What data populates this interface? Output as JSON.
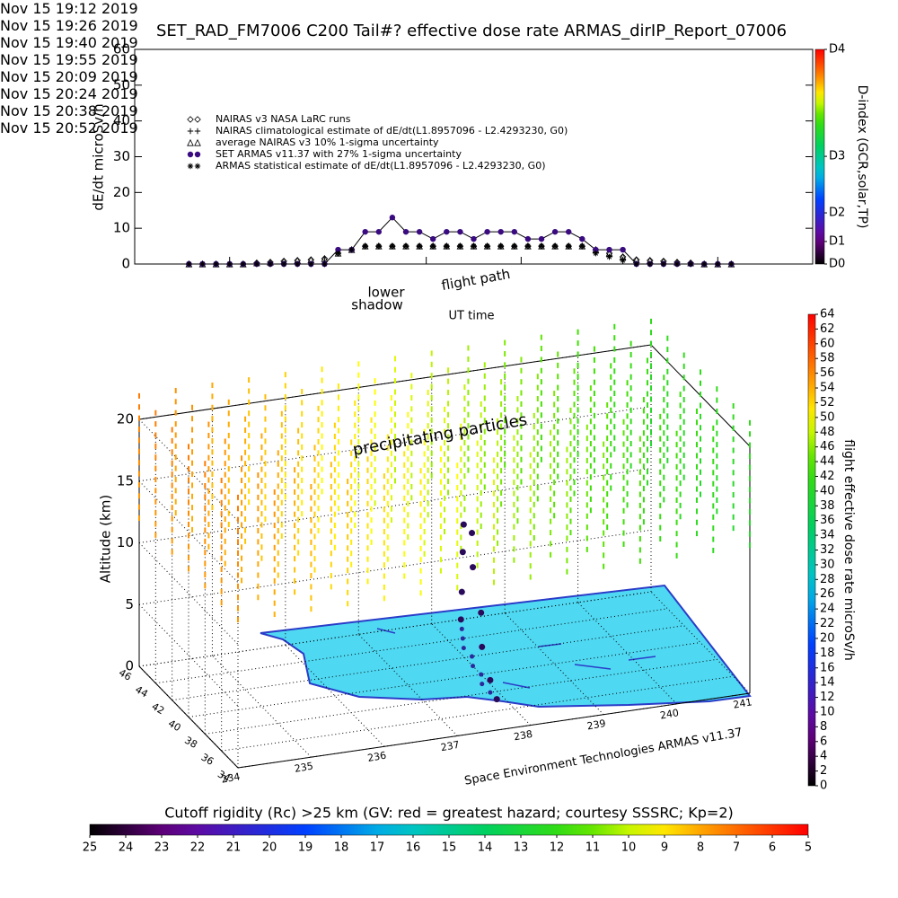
{
  "chart_data": [
    {
      "type": "line",
      "title": "SET_RAD_FM7006  C200 Tail#? effective dose rate ARMAS_dirIP_Report_07006",
      "ylabel": "dE/dt microSv/h",
      "xlabel": "UT time",
      "xlim": [
        "2019-11-15T19:12",
        "2019-11-15T20:52"
      ],
      "xticks": [
        {
          "value": "2019-11-15T19:12",
          "label": "Nov 15\n19:12 2019"
        },
        {
          "value": "2019-11-15T19:26",
          "label": "Nov 15\n19:26 2019"
        },
        {
          "value": "2019-11-15T19:40",
          "label": "Nov 15\n19:40 2019"
        },
        {
          "value": "2019-11-15T19:55",
          "label": "Nov 15\n19:55 2019"
        },
        {
          "value": "2019-11-15T20:09",
          "label": "Nov 15\n20:09 2019"
        },
        {
          "value": "2019-11-15T20:24",
          "label": "Nov 15\n20:24 2019"
        },
        {
          "value": "2019-11-15T20:38",
          "label": "Nov 15\n20:38 2019"
        },
        {
          "value": "2019-11-15T20:52",
          "label": "Nov 15\n20:52 2019"
        }
      ],
      "ylim": [
        0,
        60
      ],
      "yticks": [
        0,
        10,
        20,
        30,
        40,
        50,
        60
      ],
      "x": [
        "2019-11-15T19:20",
        "2019-11-15T19:22",
        "2019-11-15T19:24",
        "2019-11-15T19:26",
        "2019-11-15T19:28",
        "2019-11-15T19:30",
        "2019-11-15T19:32",
        "2019-11-15T19:34",
        "2019-11-15T19:36",
        "2019-11-15T19:38",
        "2019-11-15T19:40",
        "2019-11-15T19:42",
        "2019-11-15T19:44",
        "2019-11-15T19:46",
        "2019-11-15T19:48",
        "2019-11-15T19:50",
        "2019-11-15T19:52",
        "2019-11-15T19:54",
        "2019-11-15T19:56",
        "2019-11-15T19:58",
        "2019-11-15T20:00",
        "2019-11-15T20:02",
        "2019-11-15T20:04",
        "2019-11-15T20:06",
        "2019-11-15T20:08",
        "2019-11-15T20:10",
        "2019-11-15T20:12",
        "2019-11-15T20:14",
        "2019-11-15T20:16",
        "2019-11-15T20:18",
        "2019-11-15T20:20",
        "2019-11-15T20:22",
        "2019-11-15T20:24",
        "2019-11-15T20:26",
        "2019-11-15T20:28",
        "2019-11-15T20:30",
        "2019-11-15T20:32",
        "2019-11-15T20:34",
        "2019-11-15T20:36",
        "2019-11-15T20:38",
        "2019-11-15T20:40"
      ],
      "series": [
        {
          "name": "NAIRAS v3 NASA LaRC runs",
          "marker": "diamond",
          "color": "#000000",
          "values": [
            0,
            0,
            0,
            0,
            0,
            0.3,
            0.5,
            0.8,
            1,
            1.2,
            1.5,
            3,
            4,
            5,
            5,
            5,
            5,
            5,
            5,
            5,
            5,
            5,
            5,
            5,
            5,
            5,
            5,
            5,
            5,
            5,
            4,
            3,
            2,
            1.2,
            1,
            0.8,
            0.5,
            0.3,
            0,
            0,
            0
          ]
        },
        {
          "name": "NAIRAS climatological estimate of dE/dt(L1.8957096 - L2.4293230, G0)",
          "marker": "plus",
          "color": "#000000",
          "values": [
            0,
            0,
            0,
            0,
            0,
            0,
            0,
            0,
            0,
            0,
            0,
            3,
            4,
            5,
            5,
            5,
            5,
            5,
            5,
            5,
            5,
            5,
            5,
            5,
            5,
            5,
            5,
            5,
            5,
            5,
            3,
            2,
            1,
            0,
            0,
            0,
            0,
            0,
            0,
            0,
            0
          ]
        },
        {
          "name": "average NAIRAS v3 10% 1-sigma uncertainty",
          "marker": "triangle",
          "color": "#000000",
          "values": [
            0,
            0,
            0,
            0,
            0,
            0.3,
            0.5,
            0.8,
            1,
            1.2,
            1.5,
            3,
            4,
            5,
            5,
            5,
            5,
            5,
            5,
            5,
            5,
            5,
            5,
            5,
            5,
            5,
            5,
            5,
            5,
            5,
            4,
            3,
            2,
            1.2,
            1,
            0.8,
            0.5,
            0.3,
            0,
            0,
            0
          ]
        },
        {
          "name": "SET ARMAS v11.37 with 27% 1-sigma uncertainty",
          "marker": "circle",
          "color": "#3a0a80",
          "line": true,
          "values": [
            0,
            0,
            0,
            0,
            0,
            0,
            0,
            0,
            0,
            0,
            0,
            4,
            4,
            9,
            9,
            13,
            9,
            9,
            7,
            9,
            9,
            7,
            9,
            9,
            9,
            7,
            7,
            9,
            9,
            7,
            4,
            4,
            4,
            0,
            0,
            0,
            0,
            0,
            0,
            0,
            0
          ]
        },
        {
          "name": "ARMAS statistical estimate of dE/dt(L1.8957096 - L2.4293230, G0)",
          "marker": "star",
          "color": "#000000",
          "values": [
            0,
            0,
            0,
            0,
            0,
            0,
            0,
            0,
            0,
            0,
            0,
            3,
            4,
            5,
            5,
            5,
            5,
            5,
            5,
            5,
            5,
            5,
            5,
            5,
            5,
            5,
            5,
            5,
            5,
            5,
            3,
            2,
            1,
            0,
            0,
            0,
            0,
            0,
            0,
            0,
            0
          ]
        }
      ]
    },
    {
      "type": "scatter3d",
      "zlabel": "Altitude (km)",
      "xlim": [
        234,
        241
      ],
      "xticks": [
        234,
        235,
        236,
        237,
        238,
        239,
        240,
        241
      ],
      "ylim": [
        34,
        46
      ],
      "yticks": [
        34,
        36,
        38,
        40,
        42,
        44,
        46
      ],
      "zlim": [
        0,
        20
      ],
      "zticks": [
        0,
        5,
        10,
        15,
        20
      ],
      "color": "#2a0a5a",
      "x": [
        238.4,
        238.3,
        238.2,
        238.1,
        238.1,
        238.0,
        238.0,
        237.9,
        237.9,
        237.9
      ],
      "y": [
        46,
        45,
        44,
        43,
        42,
        41,
        40,
        39,
        38,
        37.2
      ],
      "z": [
        0,
        3,
        7,
        10,
        10,
        8,
        5,
        3,
        1,
        0
      ],
      "annotations": [
        "precipitating particles",
        "lower",
        "shadow",
        "flight path"
      ],
      "footer": "Space Environment Technologies ARMAS v11.37"
    },
    {
      "type": "colorbar",
      "label": "flight effective dose rate microSv/h",
      "orientation": "vertical",
      "lim": [
        0,
        64
      ],
      "ticks": [
        0,
        2,
        4,
        6,
        8,
        10,
        12,
        14,
        16,
        18,
        20,
        22,
        24,
        26,
        28,
        30,
        32,
        34,
        36,
        38,
        40,
        42,
        44,
        46,
        48,
        50,
        52,
        54,
        56,
        58,
        60,
        62,
        64
      ]
    },
    {
      "type": "colorbar",
      "label": "D-index (GCR,solar,TP)",
      "orientation": "vertical",
      "lim": [
        0,
        60
      ],
      "ticks": [
        {
          "value": 0,
          "label": "D0"
        },
        {
          "value": 6.3,
          "label": "D1"
        },
        {
          "value": 14.3,
          "label": "D2"
        },
        {
          "value": 30.1,
          "label": "D3"
        },
        {
          "value": 60,
          "label": "D4"
        }
      ]
    },
    {
      "type": "colorbar",
      "label": "Cutoff rigidity (Rc) >25 km (GV: red = greatest hazard; courtesy SSSRC; Kp=2)",
      "orientation": "horizontal",
      "lim": [
        25,
        5
      ],
      "ticks": [
        25,
        24,
        23,
        22,
        21,
        20,
        19,
        18,
        17,
        16,
        15,
        14,
        13,
        12,
        11,
        10,
        9,
        8,
        7,
        6,
        5
      ]
    }
  ]
}
